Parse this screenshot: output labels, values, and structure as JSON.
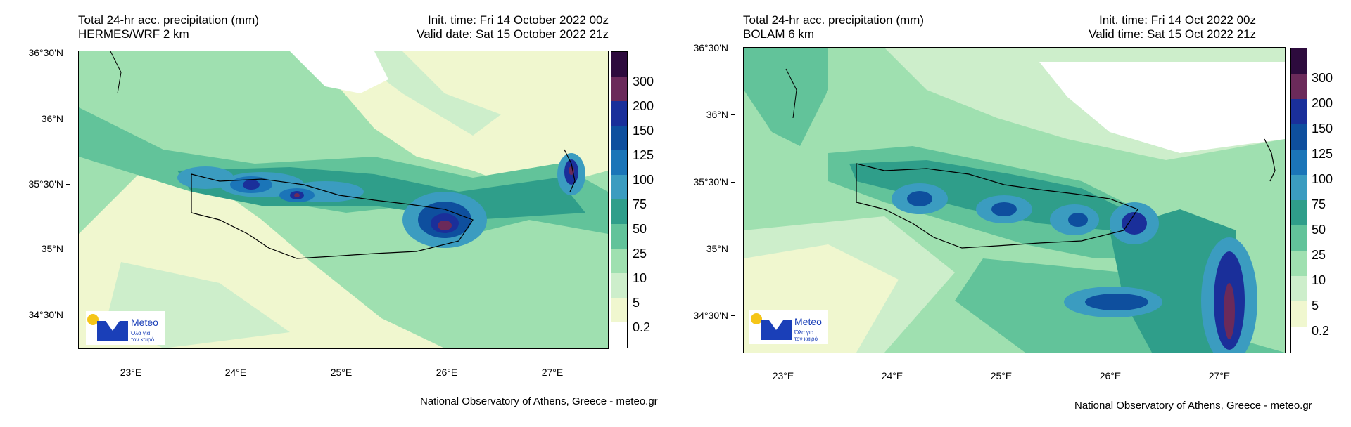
{
  "colorbar": {
    "labels": [
      "300",
      "200",
      "150",
      "125",
      "100",
      "75",
      "50",
      "25",
      "10",
      "5",
      "0.2"
    ],
    "colors": [
      "#2d0b3d",
      "#6b2a5a",
      "#1a2f9a",
      "#0e4f9e",
      "#1b75b8",
      "#3b9cc0",
      "#2f9e8a",
      "#62c39a",
      "#9fe0b0",
      "#cdeecb",
      "#f0f7cf",
      "#ffffff"
    ]
  },
  "left": {
    "title_line1": "Total 24-hr acc. precipitation (mm)",
    "title_line2": "HERMES/WRF 2 km",
    "init_line": "Init. time: Fri 14 October 2022 00z",
    "valid_line": "Valid date: Sat 15 October 2022 21z",
    "lat_ticks": [
      "36°30'N",
      "36°N",
      "35°30'N",
      "35°N",
      "34°30'N"
    ],
    "lon_ticks": [
      "23°E",
      "24°E",
      "25°E",
      "26°E",
      "27°E"
    ],
    "credit": "National Observatory of Athens, Greece - meteo.gr"
  },
  "right": {
    "title_line1": "Total 24-hr acc. precipitation (mm)",
    "title_line2": "BOLAM 6 km",
    "init_line": "Init. time: Fri 14 Oct 2022 00z",
    "valid_line": "Valid time: Sat 15 Oct 2022 21z",
    "lat_ticks": [
      "36°30'N",
      "36°N",
      "35°30'N",
      "35°N",
      "34°30'N"
    ],
    "lon_ticks": [
      "23°E",
      "24°E",
      "25°E",
      "26°E",
      "27°E"
    ],
    "credit": "National Observatory of Athens, Greece - meteo.gr"
  },
  "logo": {
    "name": "Meteo",
    "tagline_1": "Όλα για",
    "tagline_2": "τον καιρό"
  }
}
